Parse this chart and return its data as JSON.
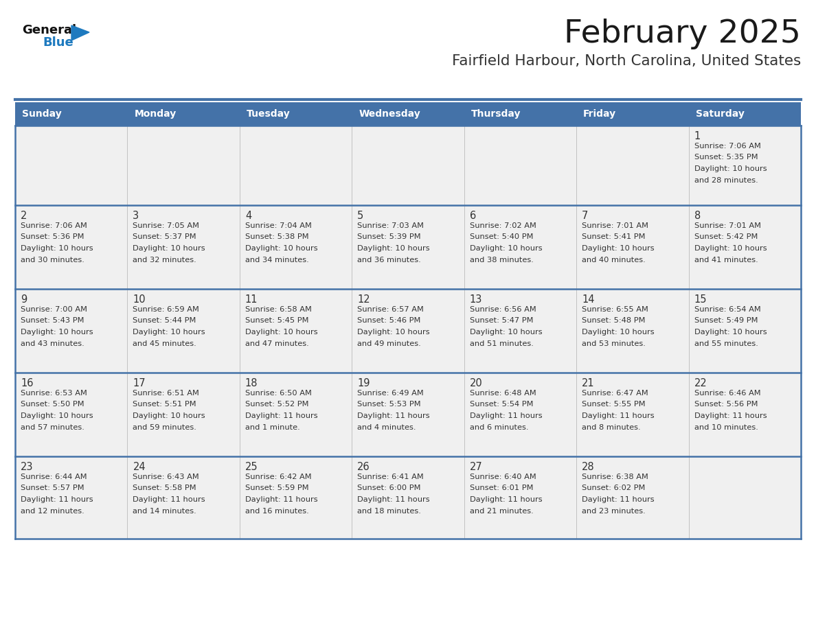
{
  "title": "February 2025",
  "subtitle": "Fairfield Harbour, North Carolina, United States",
  "header_color": "#4472A8",
  "header_text_color": "#FFFFFF",
  "cell_bg_color": "#F0F0F0",
  "border_color": "#4472A8",
  "row_border_color": "#4472A8",
  "day_names": [
    "Sunday",
    "Monday",
    "Tuesday",
    "Wednesday",
    "Thursday",
    "Friday",
    "Saturday"
  ],
  "title_color": "#1A1A1A",
  "subtitle_color": "#333333",
  "day_number_color": "#333333",
  "cell_text_color": "#333333",
  "logo_general_color": "#111111",
  "logo_blue_color": "#1E7ABF",
  "weeks": [
    [
      null,
      null,
      null,
      null,
      null,
      null,
      1
    ],
    [
      2,
      3,
      4,
      5,
      6,
      7,
      8
    ],
    [
      9,
      10,
      11,
      12,
      13,
      14,
      15
    ],
    [
      16,
      17,
      18,
      19,
      20,
      21,
      22
    ],
    [
      23,
      24,
      25,
      26,
      27,
      28,
      null
    ]
  ],
  "day_data": {
    "1": {
      "sunrise": "7:06 AM",
      "sunset": "5:35 PM",
      "daylight_hours": 10,
      "daylight_minutes": 28
    },
    "2": {
      "sunrise": "7:06 AM",
      "sunset": "5:36 PM",
      "daylight_hours": 10,
      "daylight_minutes": 30
    },
    "3": {
      "sunrise": "7:05 AM",
      "sunset": "5:37 PM",
      "daylight_hours": 10,
      "daylight_minutes": 32
    },
    "4": {
      "sunrise": "7:04 AM",
      "sunset": "5:38 PM",
      "daylight_hours": 10,
      "daylight_minutes": 34
    },
    "5": {
      "sunrise": "7:03 AM",
      "sunset": "5:39 PM",
      "daylight_hours": 10,
      "daylight_minutes": 36
    },
    "6": {
      "sunrise": "7:02 AM",
      "sunset": "5:40 PM",
      "daylight_hours": 10,
      "daylight_minutes": 38
    },
    "7": {
      "sunrise": "7:01 AM",
      "sunset": "5:41 PM",
      "daylight_hours": 10,
      "daylight_minutes": 40
    },
    "8": {
      "sunrise": "7:01 AM",
      "sunset": "5:42 PM",
      "daylight_hours": 10,
      "daylight_minutes": 41
    },
    "9": {
      "sunrise": "7:00 AM",
      "sunset": "5:43 PM",
      "daylight_hours": 10,
      "daylight_minutes": 43
    },
    "10": {
      "sunrise": "6:59 AM",
      "sunset": "5:44 PM",
      "daylight_hours": 10,
      "daylight_minutes": 45
    },
    "11": {
      "sunrise": "6:58 AM",
      "sunset": "5:45 PM",
      "daylight_hours": 10,
      "daylight_minutes": 47
    },
    "12": {
      "sunrise": "6:57 AM",
      "sunset": "5:46 PM",
      "daylight_hours": 10,
      "daylight_minutes": 49
    },
    "13": {
      "sunrise": "6:56 AM",
      "sunset": "5:47 PM",
      "daylight_hours": 10,
      "daylight_minutes": 51
    },
    "14": {
      "sunrise": "6:55 AM",
      "sunset": "5:48 PM",
      "daylight_hours": 10,
      "daylight_minutes": 53
    },
    "15": {
      "sunrise": "6:54 AM",
      "sunset": "5:49 PM",
      "daylight_hours": 10,
      "daylight_minutes": 55
    },
    "16": {
      "sunrise": "6:53 AM",
      "sunset": "5:50 PM",
      "daylight_hours": 10,
      "daylight_minutes": 57
    },
    "17": {
      "sunrise": "6:51 AM",
      "sunset": "5:51 PM",
      "daylight_hours": 10,
      "daylight_minutes": 59
    },
    "18": {
      "sunrise": "6:50 AM",
      "sunset": "5:52 PM",
      "daylight_hours": 11,
      "daylight_minutes": 1
    },
    "19": {
      "sunrise": "6:49 AM",
      "sunset": "5:53 PM",
      "daylight_hours": 11,
      "daylight_minutes": 4
    },
    "20": {
      "sunrise": "6:48 AM",
      "sunset": "5:54 PM",
      "daylight_hours": 11,
      "daylight_minutes": 6
    },
    "21": {
      "sunrise": "6:47 AM",
      "sunset": "5:55 PM",
      "daylight_hours": 11,
      "daylight_minutes": 8
    },
    "22": {
      "sunrise": "6:46 AM",
      "sunset": "5:56 PM",
      "daylight_hours": 11,
      "daylight_minutes": 10
    },
    "23": {
      "sunrise": "6:44 AM",
      "sunset": "5:57 PM",
      "daylight_hours": 11,
      "daylight_minutes": 12
    },
    "24": {
      "sunrise": "6:43 AM",
      "sunset": "5:58 PM",
      "daylight_hours": 11,
      "daylight_minutes": 14
    },
    "25": {
      "sunrise": "6:42 AM",
      "sunset": "5:59 PM",
      "daylight_hours": 11,
      "daylight_minutes": 16
    },
    "26": {
      "sunrise": "6:41 AM",
      "sunset": "6:00 PM",
      "daylight_hours": 11,
      "daylight_minutes": 18
    },
    "27": {
      "sunrise": "6:40 AM",
      "sunset": "6:01 PM",
      "daylight_hours": 11,
      "daylight_minutes": 21
    },
    "28": {
      "sunrise": "6:38 AM",
      "sunset": "6:02 PM",
      "daylight_hours": 11,
      "daylight_minutes": 23
    }
  }
}
